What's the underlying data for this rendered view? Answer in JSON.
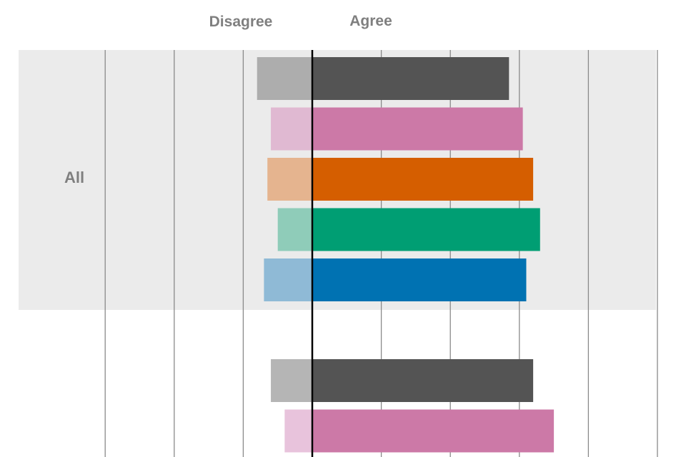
{
  "chart_data": {
    "type": "bar",
    "orientation": "horizontal",
    "diverging": true,
    "headers": {
      "left": "Disagree",
      "right": "Agree"
    },
    "groups": [
      {
        "label": "All",
        "bars": [
          {
            "disagree": 16,
            "agree": 57
          },
          {
            "disagree": 12,
            "agree": 61
          },
          {
            "disagree": 13,
            "agree": 64
          },
          {
            "disagree": 10,
            "agree": 66
          },
          {
            "disagree": 14,
            "agree": 62
          }
        ]
      },
      {
        "label": "",
        "bars": [
          {
            "disagree": 12,
            "agree": 64
          },
          {
            "disagree": 8,
            "agree": 70
          }
        ]
      }
    ],
    "series_colors": {
      "agree": [
        "#545454",
        "#cc79a7",
        "#d55e00",
        "#009e73",
        "#0072b2"
      ],
      "disagree": [
        "#adadad",
        "#e0b9d2",
        "#e5b48f",
        "#8fccb9",
        "#8fbad6"
      ],
      "disagree_second_group": [
        "#b5b5b5",
        "#e8c3dc"
      ]
    },
    "xlim": [
      -60,
      100
    ],
    "grid_step": 20,
    "band_color": "#ebebeb",
    "grid": true
  }
}
